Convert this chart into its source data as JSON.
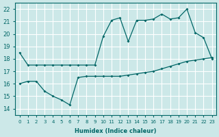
{
  "xlabel": "Humidex (Indice chaleur)",
  "ylabel": "",
  "bg_color": "#cce8e8",
  "grid_color": "#b0d0d0",
  "line_color": "#006666",
  "xlim": [
    -0.5,
    23.5
  ],
  "ylim": [
    13.5,
    22.5
  ],
  "xticks": [
    0,
    1,
    2,
    3,
    4,
    5,
    6,
    7,
    8,
    9,
    10,
    11,
    12,
    13,
    14,
    15,
    16,
    17,
    18,
    19,
    20,
    21,
    22,
    23
  ],
  "yticks": [
    14,
    15,
    16,
    17,
    18,
    19,
    20,
    21,
    22
  ],
  "line1_x": [
    0,
    1,
    2,
    3,
    4,
    5,
    6,
    7,
    8,
    9,
    10,
    11,
    12,
    13,
    14,
    15,
    16,
    17,
    18,
    19,
    20,
    21,
    22,
    23
  ],
  "line1_y": [
    18.5,
    17.5,
    17.5,
    17.5,
    17.5,
    17.5,
    17.5,
    17.5,
    17.5,
    17.5,
    19.8,
    21.1,
    21.3,
    19.4,
    21.1,
    21.1,
    21.2,
    21.6,
    21.2,
    21.3,
    22.0,
    20.1,
    19.7,
    18.0
  ],
  "line2_x": [
    0,
    1,
    2,
    3,
    4,
    5,
    6,
    7,
    8,
    9,
    10,
    11,
    12,
    13,
    14,
    15,
    16,
    17,
    18,
    19,
    20,
    21,
    22,
    23
  ],
  "line2_y": [
    16.0,
    16.2,
    16.2,
    15.4,
    15.0,
    14.7,
    14.3,
    16.5,
    16.6,
    16.6,
    16.6,
    16.6,
    16.6,
    16.7,
    16.8,
    16.9,
    17.0,
    17.2,
    17.4,
    17.6,
    17.8,
    17.9,
    18.0,
    18.1
  ]
}
